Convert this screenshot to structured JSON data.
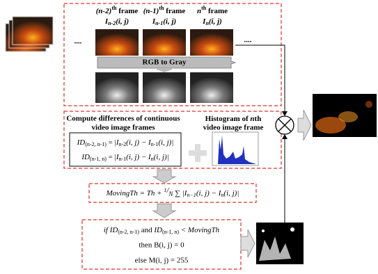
{
  "frames": [
    {
      "head": "(n-2)",
      "sup": "th",
      "tail": " frame",
      "sym": "I",
      "sub": "n-2",
      "args": "(i, j)"
    },
    {
      "head": "(n-1)",
      "sup": "th",
      "tail": " frame",
      "sym": "I",
      "sub": "n-1",
      "args": "(i, j)"
    },
    {
      "head": "n",
      "sup": "th",
      "tail": " frame",
      "sym": "I",
      "sub": "n",
      "args": "(i, j)"
    }
  ],
  "dots": [
    "....",
    "...."
  ],
  "convert": "RGB to Gray",
  "diff_title": [
    "Compute differences of continuous",
    "video image frames"
  ],
  "hist_title": {
    "pre": "Histogram of ",
    "n": "n",
    "post": "th",
    "line2": "video image frame"
  },
  "formulas": [
    {
      "id": "ID",
      "sub": "(n-2, n-1)",
      "eq": " = |",
      "a": "I",
      "asub": "n-2",
      "aargs": "(i, j) − ",
      "b": "I",
      "bsub": "n-1",
      "bargs": "(i, j)|"
    },
    {
      "id": "ID",
      "sub": "(n-1, n)",
      "eq": " = |",
      "a": "I",
      "asub": "n-1",
      "aargs": "(i, j) − ",
      "b": "I",
      "bsub": "n",
      "bargs": "(i, j)|"
    }
  ],
  "threshold": {
    "lhs": "MovingTh",
    "mid": " = Th + ",
    "num": "1",
    "den": "N",
    "sum": " ∑ |",
    "a": "I",
    "asub": "n−1",
    "aargs": "(i, j) − ",
    "b": "I",
    "bsub": "n",
    "bargs": "(i, j)|"
  },
  "rule": {
    "if": "if ",
    "id1": "ID",
    "sub1": "(n-2, n-1)",
    "and": " and ",
    "id2": "ID",
    "sub2": "(n-1, n)",
    "lt": " < MovingTh",
    "then": "then B(i, j) = 0",
    "else": "else M(i, j) = 255"
  }
}
